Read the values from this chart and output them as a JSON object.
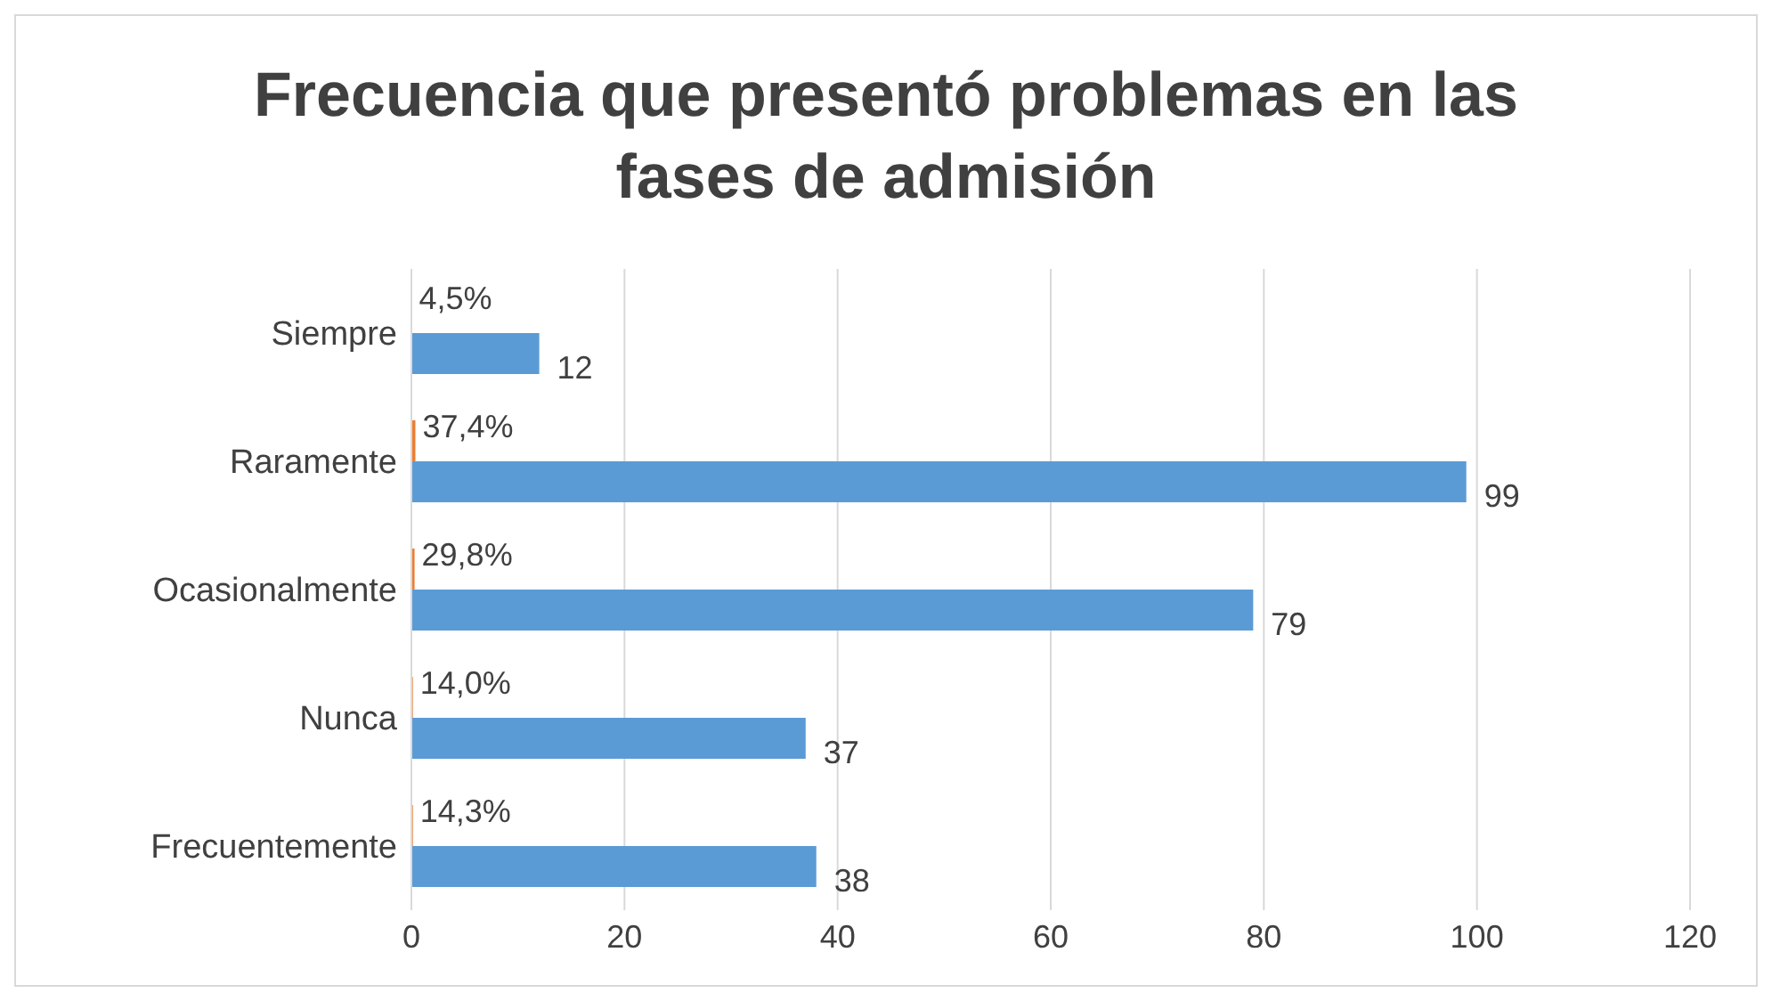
{
  "chart_data": {
    "type": "bar",
    "orientation": "horizontal",
    "title": "Frecuencia que presentó problemas en las fases de admisión",
    "categories": [
      "Siempre",
      "Raramente",
      "Ocasionalmente",
      "Nunca",
      "Frecuentemente"
    ],
    "series": [
      {
        "color": "#ed7d31",
        "values": [
          0.045,
          0.374,
          0.298,
          0.14,
          0.143
        ],
        "value_labels": [
          "4,5%",
          "37,4%",
          "29,8%",
          "14,0%",
          "14,3%"
        ]
      },
      {
        "color": "#5b9bd5",
        "values": [
          12,
          99,
          79,
          37,
          38
        ],
        "value_labels": [
          "12",
          "99",
          "79",
          "37",
          "38"
        ]
      }
    ],
    "xlim": [
      0,
      120
    ],
    "xticks": [
      0,
      20,
      40,
      60,
      80,
      100,
      120
    ],
    "grid": "x",
    "legend": false
  }
}
